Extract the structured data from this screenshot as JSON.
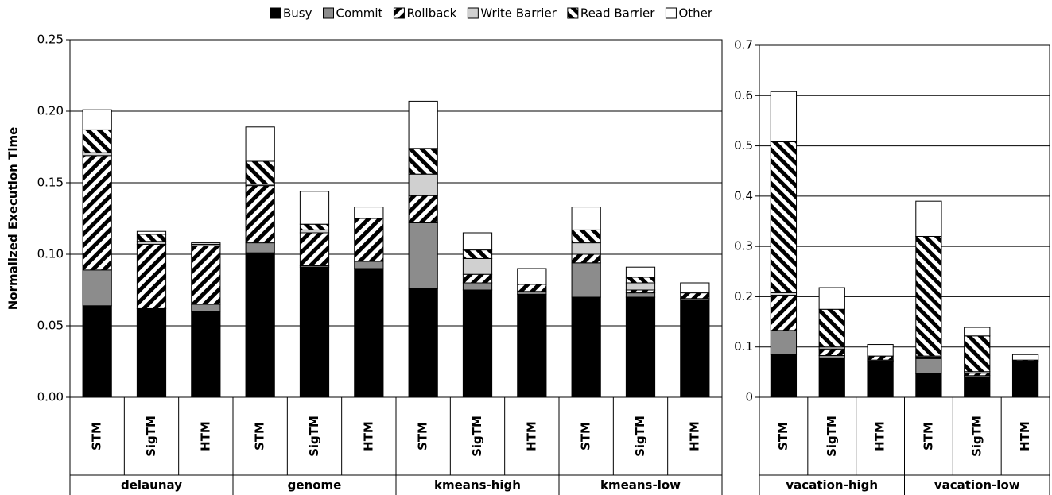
{
  "chart_data": [
    {
      "type": "bar",
      "stacked": true,
      "ylabel": "Normalized Execution Time",
      "categories": [
        "STM",
        "SigTM",
        "HTM",
        "STM",
        "SigTM",
        "HTM",
        "STM",
        "SigTM",
        "HTM",
        "STM",
        "SigTM",
        "HTM"
      ],
      "groups": [
        "delaunay",
        "genome",
        "kmeans-high",
        "kmeans-low"
      ],
      "ylim": [
        0,
        0.25
      ],
      "yticks": [
        {
          "value": 0,
          "label": "0.00"
        },
        0.05,
        {
          "value": 0.1,
          "label": "0.10"
        },
        0.15,
        {
          "value": 0.2,
          "label": "0.20"
        },
        0.25
      ],
      "grid": true,
      "series": [
        {
          "name": "Busy",
          "color": "#000000",
          "pattern": "solid",
          "values": [
            0.064,
            0.062,
            0.06,
            0.101,
            0.091,
            0.09,
            0.076,
            0.075,
            0.072,
            0.07,
            0.07,
            0.068
          ]
        },
        {
          "name": "Commit",
          "color": "#8c8c8c",
          "pattern": "solid",
          "values": [
            0.025,
            0,
            0.005,
            0.007,
            0.001,
            0.005,
            0.046,
            0.005,
            0.002,
            0.024,
            0.003,
            0.001
          ]
        },
        {
          "name": "Rollback",
          "color": "#000000",
          "pattern": "forward-hatch",
          "values": [
            0.08,
            0.045,
            0.041,
            0.04,
            0.023,
            0.03,
            0.019,
            0.006,
            0.005,
            0.006,
            0.002,
            0.004
          ]
        },
        {
          "name": "Write Barrier",
          "color": "#d0d0d0",
          "pattern": "solid",
          "values": [
            0.002,
            0.002,
            0.001,
            0.001,
            0.002,
            0,
            0.015,
            0.011,
            0,
            0.008,
            0.005,
            0
          ]
        },
        {
          "name": "Read Barrier",
          "color": "#000000",
          "pattern": "back-hatch",
          "values": [
            0.016,
            0.005,
            0,
            0.016,
            0.004,
            0,
            0.018,
            0.006,
            0,
            0.009,
            0.004,
            0
          ]
        },
        {
          "name": "Other",
          "color": "#ffffff",
          "pattern": "solid",
          "values": [
            0.014,
            0.002,
            0.001,
            0.024,
            0.023,
            0.008,
            0.033,
            0.012,
            0.011,
            0.016,
            0.007,
            0.007
          ]
        }
      ]
    },
    {
      "type": "bar",
      "stacked": true,
      "categories": [
        "STM",
        "SigTM",
        "HTM",
        "STM",
        "SigTM",
        "HTM"
      ],
      "groups": [
        "vacation-high",
        "vacation-low"
      ],
      "ylim": [
        0,
        0.7
      ],
      "yticks": [
        0,
        0.1,
        0.2,
        0.3,
        0.4,
        0.5,
        0.6,
        0.7
      ],
      "grid": true,
      "series": [
        {
          "name": "Busy",
          "color": "#000000",
          "pattern": "solid",
          "values": [
            0.085,
            0.078,
            0.072,
            0.047,
            0.04,
            0.07
          ]
        },
        {
          "name": "Commit",
          "color": "#8c8c8c",
          "pattern": "solid",
          "values": [
            0.048,
            0.005,
            0.002,
            0.03,
            0.003,
            0.002
          ]
        },
        {
          "name": "Rollback",
          "color": "#000000",
          "pattern": "forward-hatch",
          "values": [
            0.07,
            0.013,
            0.008,
            0.003,
            0.005,
            0.002
          ]
        },
        {
          "name": "Write Barrier",
          "color": "#d0d0d0",
          "pattern": "solid",
          "values": [
            0.005,
            0.004,
            0,
            0.002,
            0.003,
            0
          ]
        },
        {
          "name": "Read Barrier",
          "color": "#000000",
          "pattern": "back-hatch",
          "values": [
            0.3,
            0.075,
            0,
            0.238,
            0.071,
            0
          ]
        },
        {
          "name": "Other",
          "color": "#ffffff",
          "pattern": "solid",
          "values": [
            0.1,
            0.043,
            0.023,
            0.07,
            0.017,
            0.011
          ]
        }
      ]
    }
  ]
}
